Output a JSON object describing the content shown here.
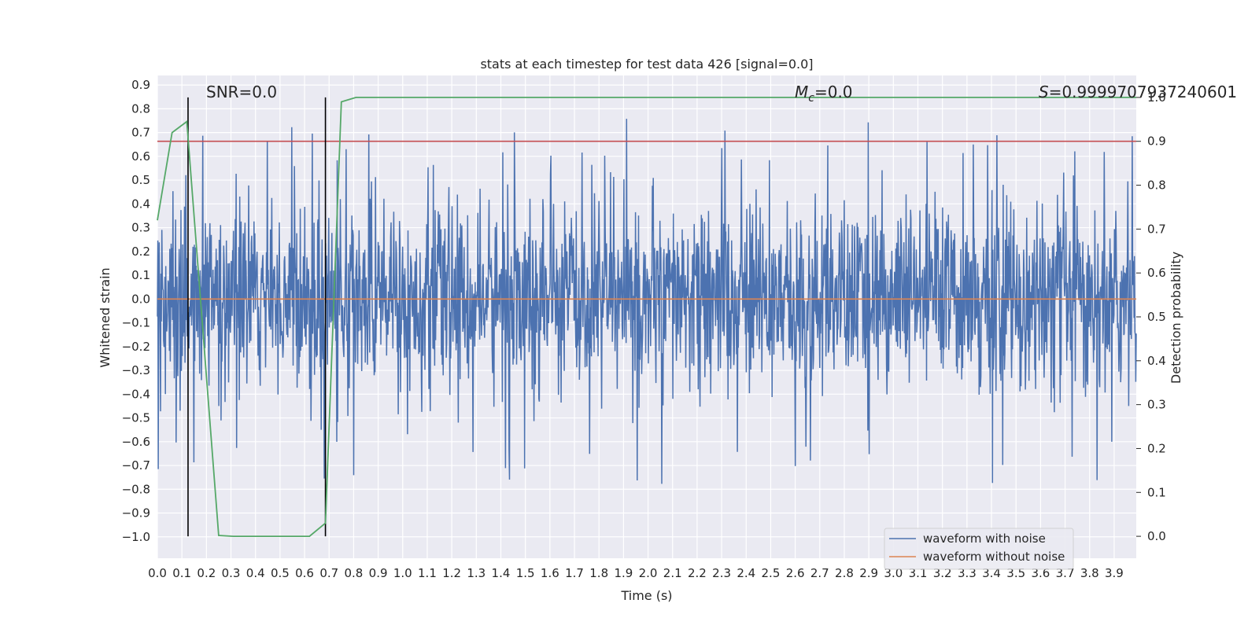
{
  "chart_data": {
    "type": "line",
    "title": "stats at each timestep for test data 426 [signal=0.0]",
    "xlabel": "Time (s)",
    "ylabel": "Whitened strain",
    "y2label": "Detection probability",
    "xlim": [
      0.0,
      3.99
    ],
    "ylim": [
      -1.09,
      0.94
    ],
    "y2lim": [
      -0.05,
      1.05
    ],
    "x_ticks": [
      "0.0",
      "0.1",
      "0.2",
      "0.3",
      "0.4",
      "0.5",
      "0.6",
      "0.7",
      "0.8",
      "0.9",
      "1.0",
      "1.1",
      "1.2",
      "1.3",
      "1.4",
      "1.5",
      "1.6",
      "1.7",
      "1.8",
      "1.9",
      "2.0",
      "2.1",
      "2.2",
      "2.3",
      "2.4",
      "2.5",
      "2.6",
      "2.7",
      "2.8",
      "2.9",
      "3.0",
      "3.1",
      "3.2",
      "3.3",
      "3.4",
      "3.5",
      "3.6",
      "3.7",
      "3.8",
      "3.9"
    ],
    "y_ticks": [
      "0.9",
      "0.8",
      "0.7",
      "0.6",
      "0.5",
      "0.4",
      "0.3",
      "0.2",
      "0.1",
      "0.0",
      "−0.1",
      "−0.2",
      "−0.3",
      "−0.4",
      "−0.5",
      "−0.6",
      "−0.7",
      "−0.8",
      "−0.9",
      "−1.0"
    ],
    "y2_ticks": [
      "1.0",
      "0.9",
      "0.8",
      "0.7",
      "0.6",
      "0.5",
      "0.4",
      "0.3",
      "0.2",
      "0.1",
      "0.0"
    ],
    "grid": true,
    "legend_position": "lower-right",
    "annotations": {
      "snr": "SNR=0.0",
      "mc_symbol": "M",
      "mc_sub": "c",
      "mc_value": "=0.0",
      "s_symbol": "S",
      "s_value": "=0.9999707937240601"
    },
    "series": [
      {
        "name": "waveform with noise",
        "color": "#4c72b0",
        "axis": "left",
        "noise_envelope": 0.3,
        "spike_min": -0.86,
        "spike_max": 0.85
      },
      {
        "name": "waveform without noise",
        "color": "#dd8452",
        "axis": "left",
        "x": [
          0.0,
          3.99
        ],
        "y": [
          0.0,
          0.0
        ]
      },
      {
        "color": "#55a868",
        "axis": "right",
        "x": [
          0.0,
          0.06,
          0.12,
          0.25,
          0.31,
          0.62,
          0.685,
          0.75,
          0.81,
          3.99
        ],
        "y": [
          0.72,
          0.92,
          0.945,
          0.002,
          0.0,
          0.0,
          0.03,
          0.99,
          1.0,
          1.0
        ]
      }
    ],
    "threshold": {
      "color": "#c44e52",
      "axis": "right",
      "value": 0.9
    },
    "vertical_markers": {
      "color": "#000000",
      "x": [
        0.125,
        0.685
      ]
    }
  }
}
